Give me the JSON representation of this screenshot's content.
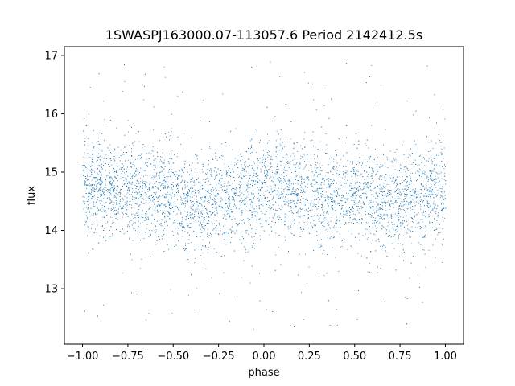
{
  "chart_data": {
    "type": "scatter",
    "title": "1SWASPJ163000.07-113057.6 Period 2142412.5s",
    "xlabel": "phase",
    "ylabel": "flux",
    "xlim": [
      -1.1,
      1.1
    ],
    "ylim": [
      12.05,
      17.15
    ],
    "xticks": [
      -1.0,
      -0.75,
      -0.5,
      -0.25,
      0.0,
      0.25,
      0.5,
      0.75,
      1.0
    ],
    "xtick_labels": [
      "−1.00",
      "−0.75",
      "−0.50",
      "−0.25",
      "0.00",
      "0.25",
      "0.50",
      "0.75",
      "1.00"
    ],
    "yticks": [
      13,
      14,
      15,
      16,
      17
    ],
    "ytick_labels": [
      "13",
      "14",
      "15",
      "16",
      "17"
    ],
    "grid": false,
    "series": [
      {
        "color": "#1f77b4",
        "x_range": [
          -1.0,
          1.0
        ],
        "center_flux_profile": {
          "phase": [
            -1.0,
            -0.75,
            -0.5,
            -0.4,
            -0.25,
            -0.1,
            0.0,
            0.25,
            0.5,
            0.6,
            0.75,
            1.0
          ],
          "flux": [
            14.75,
            14.75,
            14.6,
            14.45,
            14.5,
            14.65,
            14.75,
            14.7,
            14.6,
            14.45,
            14.5,
            14.75
          ]
        },
        "core_spread": [
          13.7,
          15.7
        ],
        "outlier_range": [
          12.3,
          16.95
        ]
      }
    ]
  }
}
